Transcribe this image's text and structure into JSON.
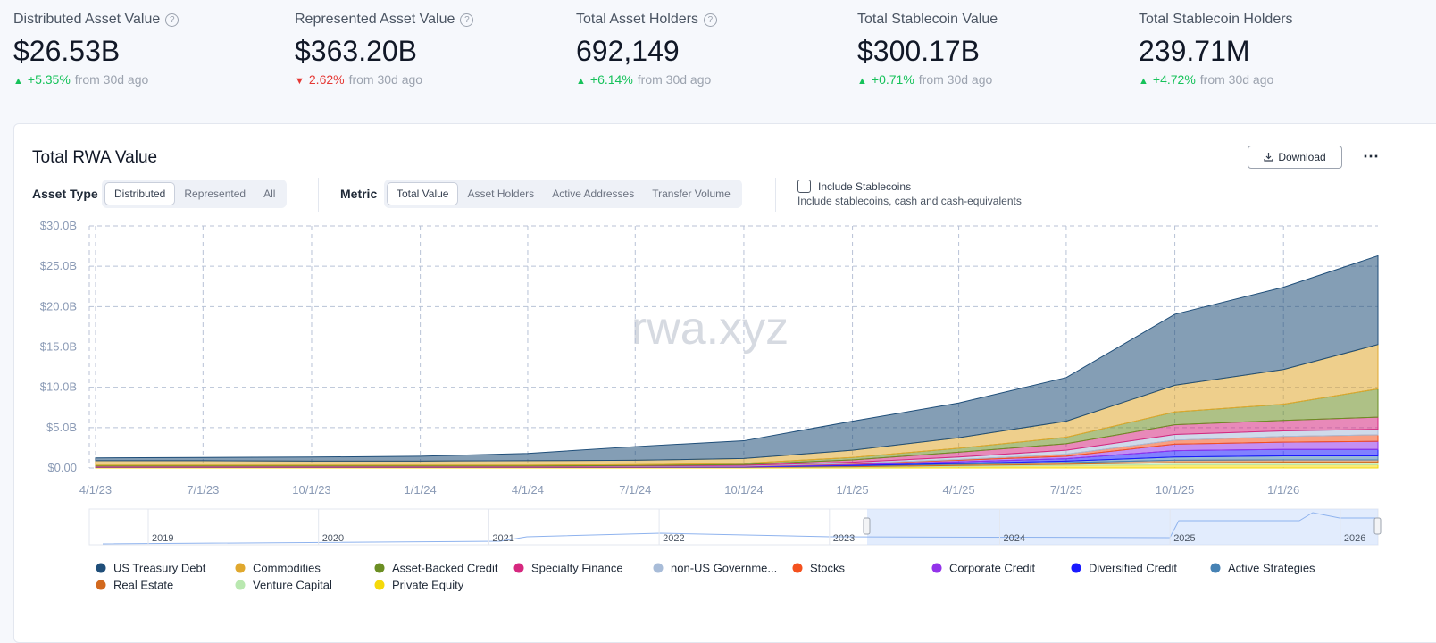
{
  "stats": [
    {
      "title": "Distributed Asset Value",
      "value": "$26.53B",
      "change": "+5.35%",
      "note": "from 30d ago",
      "direction": "up",
      "help": "?"
    },
    {
      "title": "Represented Asset Value",
      "value": "$363.20B",
      "change": "2.62%",
      "note": "from 30d ago",
      "direction": "down",
      "help": "?"
    },
    {
      "title": "Total Asset Holders",
      "value": "692,149",
      "change": "+6.14%",
      "note": "from 30d ago",
      "direction": "up",
      "help": "?"
    },
    {
      "title": "Total Stablecoin Value",
      "value": "$300.17B",
      "change": "+0.71%",
      "note": "from 30d ago",
      "direction": "up"
    },
    {
      "title": "Total Stablecoin Holders",
      "value": "239.71M",
      "change": "+4.72%",
      "note": "from 30d ago",
      "direction": "up"
    }
  ],
  "controls": {
    "download": "Download",
    "asset_type_label": "Asset Type",
    "asset_types": [
      "Distributed",
      "Represented",
      "All"
    ],
    "metric_label": "Metric",
    "metrics": [
      "Total Value",
      "Asset Holders",
      "Active Addresses",
      "Transfer Volume"
    ],
    "stablecoin_label": "Include Stablecoins",
    "stablecoin_note": "Include stablecoins, cash and cash-equivalents"
  },
  "watermark": "rwa.xyz",
  "navigator": {
    "years": [
      "2019",
      "2020",
      "2021",
      "2022",
      "2023",
      "2024",
      "2025",
      "2026"
    ]
  },
  "chart_data": {
    "type": "stacked-area",
    "title": "Total RWA Value",
    "x": [
      "4/1/23",
      "7/1/23",
      "10/1/23",
      "1/1/24",
      "4/1/24",
      "7/1/24",
      "10/1/24",
      "1/1/25",
      "4/1/25",
      "7/1/25",
      "10/1/25",
      "1/1/26",
      "3/22/26"
    ],
    "xlim": [
      "4/1/23",
      "3/22/26"
    ],
    "xticks": [
      "4/1/23",
      "7/1/23",
      "10/1/23",
      "1/1/24",
      "4/1/24",
      "7/1/24",
      "10/1/24",
      "1/1/25",
      "4/1/25",
      "7/1/25",
      "10/1/25",
      "1/1/26"
    ],
    "ylim": [
      0,
      30
    ],
    "yticks": [
      {
        "value": 0,
        "label": "$0.00"
      },
      {
        "value": 5,
        "label": "$5.0B"
      },
      {
        "value": 10,
        "label": "$10.0B"
      },
      {
        "value": 15,
        "label": "$15.0B"
      },
      {
        "value": 20,
        "label": "$20.0B"
      },
      {
        "value": 25,
        "label": "$25.0B"
      },
      {
        "value": 30,
        "label": "$30.0B"
      }
    ],
    "grid": true,
    "series": [
      {
        "name": "US Treasury Debt",
        "color": "#1f4e79",
        "values": [
          0.35,
          0.4,
          0.5,
          0.6,
          0.9,
          1.7,
          2.2,
          3.6,
          4.3,
          5.4,
          8.8,
          10.2,
          11.0
        ]
      },
      {
        "name": "Commodities",
        "color": "#e0a82e",
        "values": [
          0.55,
          0.55,
          0.5,
          0.5,
          0.55,
          0.55,
          0.6,
          0.9,
          1.3,
          2.0,
          3.3,
          4.3,
          5.5
        ]
      },
      {
        "name": "Asset-Backed Credit",
        "color": "#6b8e23",
        "values": [
          0.1,
          0.1,
          0.1,
          0.1,
          0.1,
          0.1,
          0.15,
          0.3,
          0.5,
          0.8,
          1.6,
          2.0,
          3.5
        ]
      },
      {
        "name": "Specialty Finance",
        "color": "#d6287f",
        "values": [
          0.05,
          0.05,
          0.05,
          0.05,
          0.05,
          0.05,
          0.1,
          0.3,
          0.6,
          0.8,
          1.2,
          1.3,
          1.5
        ]
      },
      {
        "name": "non-US Governme...",
        "color": "#a8bcd8",
        "values": [
          0.02,
          0.02,
          0.02,
          0.02,
          0.02,
          0.05,
          0.08,
          0.15,
          0.3,
          0.5,
          0.7,
          0.7,
          0.7
        ]
      },
      {
        "name": "Stocks",
        "color": "#f4511e",
        "values": [
          0,
          0,
          0,
          0,
          0,
          0.01,
          0.02,
          0.05,
          0.1,
          0.25,
          0.5,
          0.7,
          0.8
        ]
      },
      {
        "name": "Corporate Credit",
        "color": "#9333ea",
        "values": [
          0.05,
          0.05,
          0.05,
          0.05,
          0.05,
          0.05,
          0.05,
          0.1,
          0.2,
          0.3,
          0.8,
          0.9,
          1.0
        ]
      },
      {
        "name": "Diversified Credit",
        "color": "#1a1aff",
        "values": [
          0.02,
          0.02,
          0.02,
          0.02,
          0.02,
          0.03,
          0.05,
          0.1,
          0.2,
          0.3,
          0.8,
          0.8,
          0.8
        ]
      },
      {
        "name": "Active Strategies",
        "color": "#4682b4",
        "values": [
          0,
          0,
          0,
          0,
          0,
          0,
          0,
          0.05,
          0.1,
          0.2,
          0.4,
          0.5,
          0.5
        ]
      },
      {
        "name": "Real Estate",
        "color": "#d2691e",
        "values": [
          0.05,
          0.05,
          0.05,
          0.05,
          0.05,
          0.05,
          0.05,
          0.1,
          0.15,
          0.2,
          0.3,
          0.3,
          0.3
        ]
      },
      {
        "name": "Venture Capital",
        "color": "#b9e8b0",
        "values": [
          0.01,
          0.01,
          0.01,
          0.01,
          0.01,
          0.01,
          0.02,
          0.05,
          0.1,
          0.15,
          0.25,
          0.3,
          0.3
        ]
      },
      {
        "name": "Private Equity",
        "color": "#f5d90a",
        "values": [
          0.05,
          0.05,
          0.05,
          0.05,
          0.05,
          0.05,
          0.05,
          0.1,
          0.2,
          0.3,
          0.4,
          0.4,
          0.4
        ]
      }
    ]
  }
}
